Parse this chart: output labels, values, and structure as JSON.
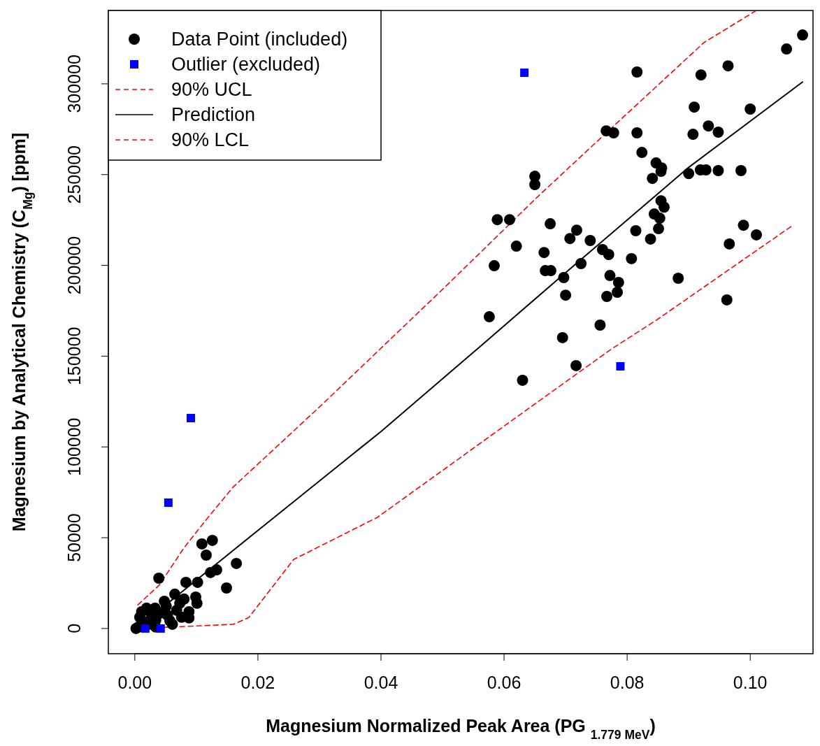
{
  "chart_data": {
    "type": "scatter",
    "xlabel": "Magnesium Normalized Peak Area (PG $_{1.779 MeV}$)",
    "ylabel": "Magnesium by Analytical Chemistry (C$_{Mg}$) [ppm]",
    "xlim": [
      -0.0043,
      0.1102
    ],
    "ylim": [
      -13900,
      340400
    ],
    "xticks": [
      {
        "value": 0,
        "label": "0.00"
      },
      {
        "value": 0.02,
        "label": "0.02"
      },
      {
        "value": 0.04,
        "label": "0.04"
      },
      {
        "value": 0.06,
        "label": "0.06"
      },
      {
        "value": 0.08,
        "label": "0.08"
      },
      {
        "value": 0.1,
        "label": "0.10"
      }
    ],
    "yticks": [
      0,
      50000,
      100000,
      150000,
      200000,
      250000,
      300000
    ],
    "grid": false,
    "legend": "top left",
    "series": [
      {
        "name": "Data Point (included)",
        "marker": "circle",
        "color": "#000000",
        "x": [
          0.0576,
          0.0584,
          0.0589,
          0.0609,
          0.062,
          0.063,
          0.065,
          0.065,
          0.0665,
          0.0667,
          0.0676,
          0.0675,
          0.0697,
          0.0695,
          0.07,
          0.0707,
          0.0718,
          0.0717,
          0.0725,
          0.074,
          0.0756,
          0.076,
          0.0766,
          0.0767,
          0.077,
          0.0772,
          0.0778,
          0.0784,
          0.0786,
          0.0807,
          0.0814,
          0.0816,
          0.0816,
          0.0824,
          0.0841,
          0.0844,
          0.0838,
          0.0847,
          0.0853,
          0.0851,
          0.0855,
          0.0856,
          0.0855,
          0.086,
          0.0883,
          0.09,
          0.0907,
          0.0909,
          0.092,
          0.0919,
          0.0928,
          0.0932,
          0.0948,
          0.0948,
          0.0964,
          0.0962,
          0.0966,
          0.0985,
          0.0989,
          0.1,
          0.101,
          0.1059,
          0.1085,
          0.0126,
          0.0109,
          0.0116,
          0.0165,
          0.0039,
          0.0133,
          0.0123,
          0.0149,
          0.0083,
          0.0102,
          0.0065,
          0.0101,
          0.0099,
          0.0088,
          0.0088,
          0.0048,
          0.0057,
          0.0006,
          0.0016,
          0.0019,
          0.0008,
          0.0002,
          0.0027,
          0.0033,
          0.0034,
          0.0034,
          0.0042,
          0.0045,
          0.0051,
          0.0061,
          0.0068,
          0.0073,
          0.0076,
          0.008,
          0.0011,
          0.0023,
          0.0053
        ],
        "values": [
          171700,
          199800,
          225200,
          225200,
          210600,
          136700,
          249100,
          244500,
          207100,
          197100,
          197100,
          222900,
          193300,
          160200,
          183600,
          214800,
          219400,
          144800,
          201000,
          213700,
          167100,
          208700,
          274100,
          182900,
          206000,
          194400,
          273000,
          185200,
          190600,
          203700,
          219100,
          306500,
          273000,
          262200,
          247900,
          228300,
          214500,
          256400,
          226000,
          220200,
          251800,
          253700,
          235600,
          232100,
          192900,
          250600,
          272200,
          287200,
          304900,
          252600,
          252600,
          276800,
          273400,
          252200,
          309900,
          181000,
          211800,
          252200,
          222100,
          286100,
          216800,
          319200,
          326900,
          48500,
          46600,
          40400,
          35800,
          27700,
          32300,
          30800,
          22300,
          25400,
          25400,
          18900,
          13900,
          17300,
          9200,
          5800,
          15000,
          4200,
          800,
          3500,
          11200,
          6200,
          0,
          7300,
          11200,
          4600,
          800,
          8500,
          null,
          12300,
          2300,
          10000,
          13900,
          6200,
          16200,
          9200,
          2300,
          7300
        ]
      },
      {
        "name": "Outlier (excluded)",
        "marker": "square",
        "color": "#0000ff",
        "x": [
          0.0633,
          0.0789,
          0.0091,
          0.00545,
          0.0017,
          0.0042
        ],
        "values": [
          306100,
          144400,
          115900,
          69300,
          0,
          0
        ]
      },
      {
        "name": "90% UCL",
        "type": "line",
        "line_style": "dashed",
        "color": "#ff0000",
        "x": [
          0.0005,
          0.004,
          0.008,
          0.0119,
          0.016,
          0.03,
          0.0508,
          0.0652,
          0.0766,
          0.0925,
          0.1008
        ],
        "values": [
          13000,
          24000,
          44500,
          61200,
          78000,
          122000,
          189400,
          237000,
          273000,
          322800,
          340000
        ]
      },
      {
        "name": "Prediction",
        "type": "line",
        "line_style": "solid",
        "color": "#000000",
        "x": [
          0.001,
          0.02,
          0.04,
          0.056,
          0.07,
          0.09,
          0.1085
        ],
        "values": [
          2000,
          54000,
          108500,
          155000,
          196000,
          254000,
          301000
        ]
      },
      {
        "name": "90% LCL",
        "type": "line",
        "line_style": "dashed",
        "color": "#ff0000",
        "x": [
          0.0005,
          0.016,
          0.0185,
          0.0258,
          0.0394,
          0.0508,
          0.0678,
          0.0773,
          0.0849,
          0.0963,
          0.1068
        ],
        "values": [
          0,
          2300,
          6000,
          38000,
          61200,
          89000,
          130500,
          153600,
          170200,
          197100,
          221800
        ]
      }
    ]
  }
}
